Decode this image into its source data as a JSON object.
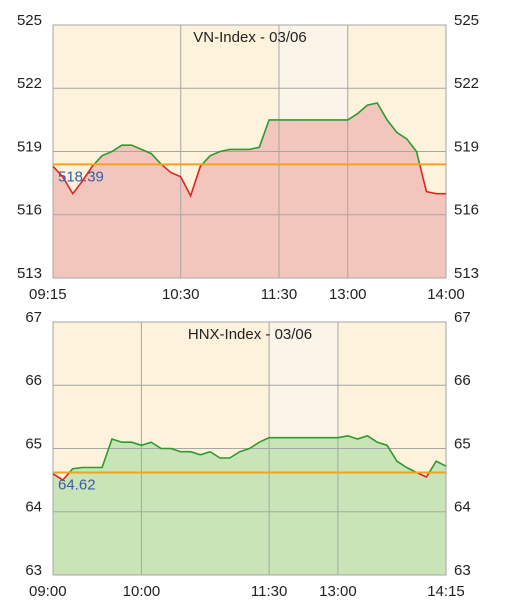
{
  "chart_data": [
    {
      "type": "line",
      "title": "VN-Index - 03/06",
      "categories": [
        "09:15",
        null,
        null,
        null,
        null,
        null,
        null,
        null,
        null,
        null,
        null,
        null,
        null,
        "10:30",
        null,
        null,
        null,
        null,
        null,
        null,
        null,
        null,
        null,
        "11:30",
        null,
        null,
        null,
        null,
        null,
        null,
        "13:00",
        null,
        null,
        null,
        null,
        null,
        null,
        null,
        null,
        null,
        "14:00"
      ],
      "values": [
        518.3,
        517.8,
        517.0,
        517.6,
        518.3,
        518.8,
        519.0,
        519.3,
        519.3,
        519.1,
        518.9,
        518.4,
        518.0,
        517.8,
        516.9,
        518.3,
        518.8,
        519.0,
        519.1,
        519.1,
        519.1,
        519.2,
        520.5,
        520.5,
        520.5,
        520.5,
        520.5,
        520.5,
        520.5,
        520.5,
        520.5,
        520.8,
        521.2,
        521.3,
        520.5,
        519.9,
        519.6,
        519.0,
        517.1,
        517.0,
        517.0
      ],
      "reference": 518.39,
      "ylim": [
        513,
        525
      ],
      "yticks": [
        513,
        516,
        519,
        522,
        525
      ],
      "y2lim": [
        513,
        525
      ],
      "y2ticks": [
        513,
        516,
        519,
        522,
        525
      ],
      "color_above": "#2e9a2e",
      "color_below": "#e02424",
      "area_color": "#f3c6bd",
      "reference_color": "#f2a31b",
      "grid": true
    },
    {
      "type": "line",
      "title": "HNX-Index - 03/06",
      "categories": [
        "09:00",
        null,
        null,
        null,
        null,
        null,
        null,
        null,
        null,
        "10:00",
        null,
        null,
        null,
        null,
        null,
        null,
        null,
        null,
        null,
        null,
        null,
        null,
        "11:30",
        null,
        null,
        null,
        null,
        null,
        null,
        "13:00",
        null,
        null,
        null,
        null,
        null,
        null,
        null,
        null,
        null,
        null,
        "14:15"
      ],
      "values": [
        64.6,
        64.5,
        64.68,
        64.7,
        64.7,
        64.7,
        65.15,
        65.1,
        65.1,
        65.05,
        65.1,
        65.0,
        65.0,
        64.95,
        64.95,
        64.9,
        64.95,
        64.85,
        64.85,
        64.95,
        65.0,
        65.1,
        65.17,
        65.17,
        65.17,
        65.17,
        65.17,
        65.17,
        65.17,
        65.17,
        65.2,
        65.15,
        65.2,
        65.1,
        65.05,
        64.8,
        64.7,
        64.62,
        64.55,
        64.8,
        64.72
      ],
      "reference": 64.62,
      "ylim": [
        63,
        67
      ],
      "yticks": [
        63,
        64,
        65,
        66,
        67
      ],
      "y2lim": [
        63,
        67
      ],
      "y2ticks": [
        63,
        64,
        65,
        66,
        67
      ],
      "color_above": "#2e9a2e",
      "color_below": "#e02424",
      "area_color": "#c9e4b6",
      "reference_color": "#f2a31b",
      "grid": true
    }
  ]
}
